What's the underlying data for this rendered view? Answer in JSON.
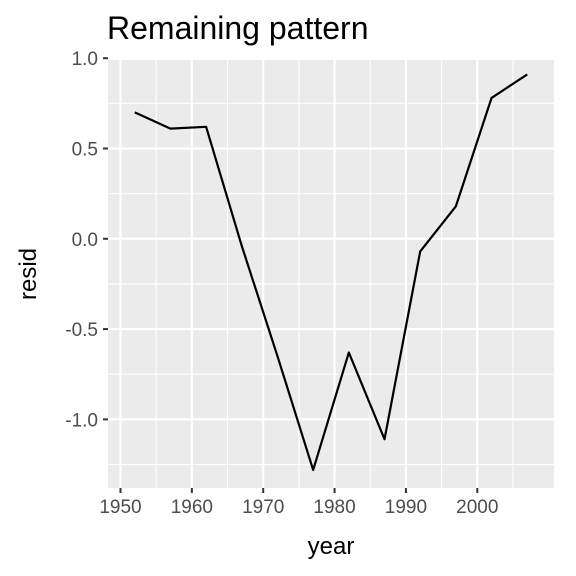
{
  "chart_data": {
    "type": "line",
    "title": "Remaining pattern",
    "xlabel": "year",
    "ylabel": "resid",
    "xlim": [
      1948.25,
      2010.75
    ],
    "ylim": [
      -1.38,
      0.99
    ],
    "x_ticks": [
      1950,
      1960,
      1970,
      1980,
      1990,
      2000
    ],
    "x_tick_labels": [
      "1950",
      "1960",
      "1970",
      "1980",
      "1990",
      "2000"
    ],
    "y_ticks": [
      1.0,
      0.5,
      0.0,
      -0.5,
      -1.0
    ],
    "y_tick_labels": [
      "1.0",
      "0.5",
      "0.0",
      "-0.5",
      "-1.0"
    ],
    "grid": true,
    "legend": "none",
    "colors": {
      "panel": "#ebebeb",
      "grid": "#ffffff",
      "line": "#000000",
      "tick_text": "#4d4d4d",
      "tick_mark": "#333333"
    },
    "series": [
      {
        "x": [
          1952,
          1957,
          1962,
          1967,
          1972,
          1977,
          1982,
          1987,
          1992,
          1997,
          2002,
          2007
        ],
        "y": [
          0.7,
          0.61,
          0.62,
          -0.04,
          -0.65,
          -1.28,
          -0.63,
          -1.11,
          -0.07,
          0.18,
          0.78,
          0.91
        ]
      }
    ]
  }
}
